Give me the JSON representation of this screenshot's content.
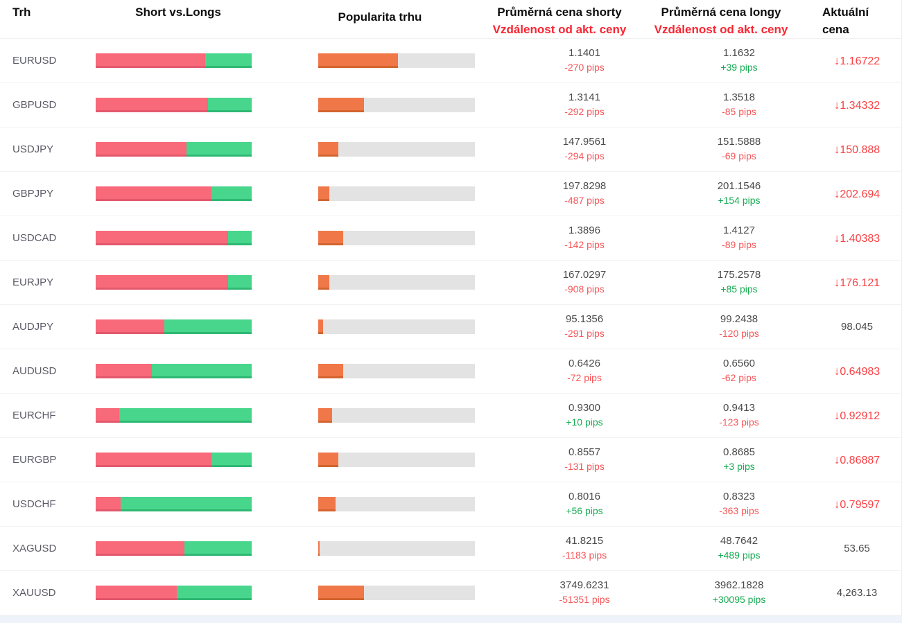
{
  "header": {
    "market": "Trh",
    "short_vs_longs": "Short vs.Longs",
    "popularity": "Popularita trhu",
    "avg_short_title": "Průměrná cena shorty",
    "avg_short_subtitle": "Vzdálenost od akt. ceny",
    "avg_long_title": "Průměrná cena longy",
    "avg_long_subtitle": "Vzdálenost od akt. ceny",
    "current_line1": "Aktuální",
    "current_line2": "cena"
  },
  "icons": {
    "price_down_arrow": "↓"
  },
  "colors": {
    "short_bar": "#f8697a",
    "long_bar": "#47d68c",
    "popularity_bar": "#f07848",
    "track": "#e3e3e3",
    "negative": "#f75558",
    "positive": "#17ab52",
    "header_red": "#f92531",
    "price_down": "#fb4144"
  },
  "rows": [
    {
      "symbol": "EURUSD",
      "short_pct": 70,
      "long_pct": 30,
      "popularity_pct": 51,
      "avg_short": "1.1401",
      "short_dist": "-270 pips",
      "avg_long": "1.1632",
      "long_dist": "+39 pips",
      "current": "1.16722",
      "direction": "down"
    },
    {
      "symbol": "GBPUSD",
      "short_pct": 72,
      "long_pct": 28,
      "popularity_pct": 29,
      "avg_short": "1.3141",
      "short_dist": "-292 pips",
      "avg_long": "1.3518",
      "long_dist": "-85 pips",
      "current": "1.34332",
      "direction": "down"
    },
    {
      "symbol": "USDJPY",
      "short_pct": 58,
      "long_pct": 42,
      "popularity_pct": 13,
      "avg_short": "147.9561",
      "short_dist": "-294 pips",
      "avg_long": "151.5888",
      "long_dist": "-69 pips",
      "current": "150.888",
      "direction": "down"
    },
    {
      "symbol": "GBPJPY",
      "short_pct": 74,
      "long_pct": 26,
      "popularity_pct": 7,
      "avg_short": "197.8298",
      "short_dist": "-487 pips",
      "avg_long": "201.1546",
      "long_dist": "+154 pips",
      "current": "202.694",
      "direction": "down"
    },
    {
      "symbol": "USDCAD",
      "short_pct": 85,
      "long_pct": 15,
      "popularity_pct": 16,
      "avg_short": "1.3896",
      "short_dist": "-142 pips",
      "avg_long": "1.4127",
      "long_dist": "-89 pips",
      "current": "1.40383",
      "direction": "down"
    },
    {
      "symbol": "EURJPY",
      "short_pct": 85,
      "long_pct": 15,
      "popularity_pct": 7,
      "avg_short": "167.0297",
      "short_dist": "-908 pips",
      "avg_long": "175.2578",
      "long_dist": "+85 pips",
      "current": "176.121",
      "direction": "down"
    },
    {
      "symbol": "AUDJPY",
      "short_pct": 44,
      "long_pct": 56,
      "popularity_pct": 3,
      "avg_short": "95.1356",
      "short_dist": "-291 pips",
      "avg_long": "99.2438",
      "long_dist": "-120 pips",
      "current": "98.045",
      "direction": "none"
    },
    {
      "symbol": "AUDUSD",
      "short_pct": 36,
      "long_pct": 64,
      "popularity_pct": 16,
      "avg_short": "0.6426",
      "short_dist": "-72 pips",
      "avg_long": "0.6560",
      "long_dist": "-62 pips",
      "current": "0.64983",
      "direction": "down"
    },
    {
      "symbol": "EURCHF",
      "short_pct": 15,
      "long_pct": 85,
      "popularity_pct": 9,
      "avg_short": "0.9300",
      "short_dist": "+10 pips",
      "avg_long": "0.9413",
      "long_dist": "-123 pips",
      "current": "0.92912",
      "direction": "down"
    },
    {
      "symbol": "EURGBP",
      "short_pct": 74,
      "long_pct": 26,
      "popularity_pct": 13,
      "avg_short": "0.8557",
      "short_dist": "-131 pips",
      "avg_long": "0.8685",
      "long_dist": "+3 pips",
      "current": "0.86887",
      "direction": "down"
    },
    {
      "symbol": "USDCHF",
      "short_pct": 16,
      "long_pct": 84,
      "popularity_pct": 11,
      "avg_short": "0.8016",
      "short_dist": "+56 pips",
      "avg_long": "0.8323",
      "long_dist": "-363 pips",
      "current": "0.79597",
      "direction": "down"
    },
    {
      "symbol": "XAGUSD",
      "short_pct": 57,
      "long_pct": 43,
      "popularity_pct": 1,
      "avg_short": "41.8215",
      "short_dist": "-1183 pips",
      "avg_long": "48.7642",
      "long_dist": "+489 pips",
      "current": "53.65",
      "direction": "none"
    },
    {
      "symbol": "XAUUSD",
      "short_pct": 52,
      "long_pct": 48,
      "popularity_pct": 29,
      "avg_short": "3749.6231",
      "short_dist": "-51351 pips",
      "avg_long": "3962.1828",
      "long_dist": "+30095 pips",
      "current": "4,263.13",
      "direction": "none"
    }
  ]
}
